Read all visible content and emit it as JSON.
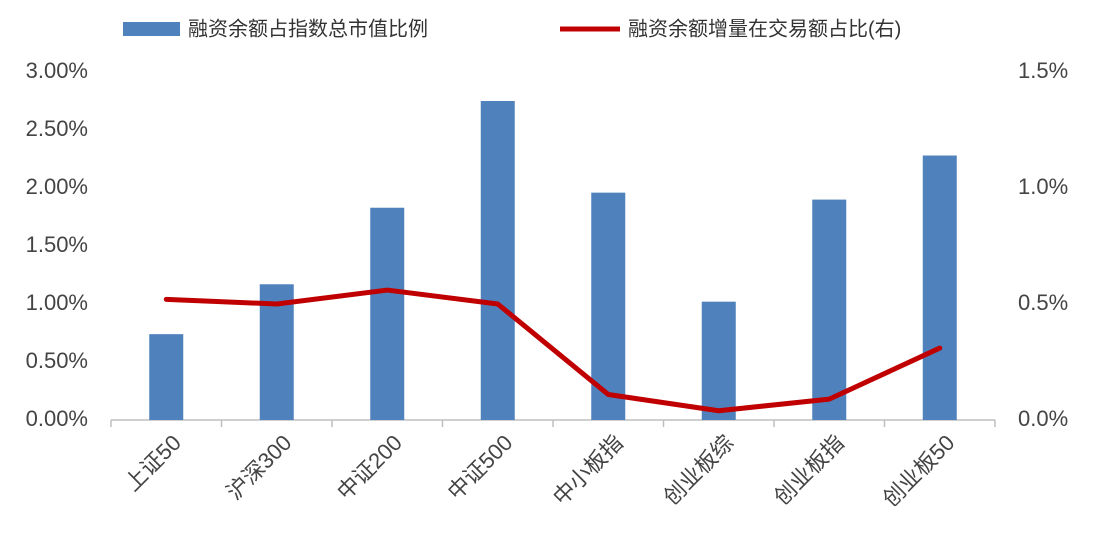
{
  "chart_data": {
    "type": "combo",
    "categories": [
      "上证50",
      "沪深300",
      "中证200",
      "中证500",
      "中小板指",
      "创业板综",
      "创业板指",
      "创业板50"
    ],
    "series": [
      {
        "name": "融资余额占指数总市值比例",
        "type": "bar",
        "color": "#4f81bd",
        "values": [
          0.74,
          1.17,
          1.83,
          2.75,
          1.96,
          1.02,
          1.9,
          2.28
        ]
      },
      {
        "name": "融资余额增量在交易额占比(右)",
        "type": "line",
        "axis": "y2",
        "color": "#c00000",
        "values": [
          0.52,
          0.5,
          0.56,
          0.5,
          0.11,
          0.04,
          0.09,
          0.31
        ]
      }
    ],
    "ylim": [
      0,
      3
    ],
    "yticks": [
      {
        "value": 0,
        "label": "0.00%"
      },
      {
        "value": 0.5,
        "label": "0.50%"
      },
      {
        "value": 1,
        "label": "1.00%"
      },
      {
        "value": 1.5,
        "label": "1.50%"
      },
      {
        "value": 2,
        "label": "2.00%"
      },
      {
        "value": 2.5,
        "label": "2.50%"
      },
      {
        "value": 3,
        "label": "3.00%"
      }
    ],
    "y2lim": [
      0,
      1.5
    ],
    "y2ticks": [
      {
        "value": 0,
        "label": "0.0%"
      },
      {
        "value": 0.5,
        "label": "0.5%"
      },
      {
        "value": 1,
        "label": "1.0%"
      },
      {
        "value": 1.5,
        "label": "1.5%"
      }
    ],
    "legend": "top"
  }
}
